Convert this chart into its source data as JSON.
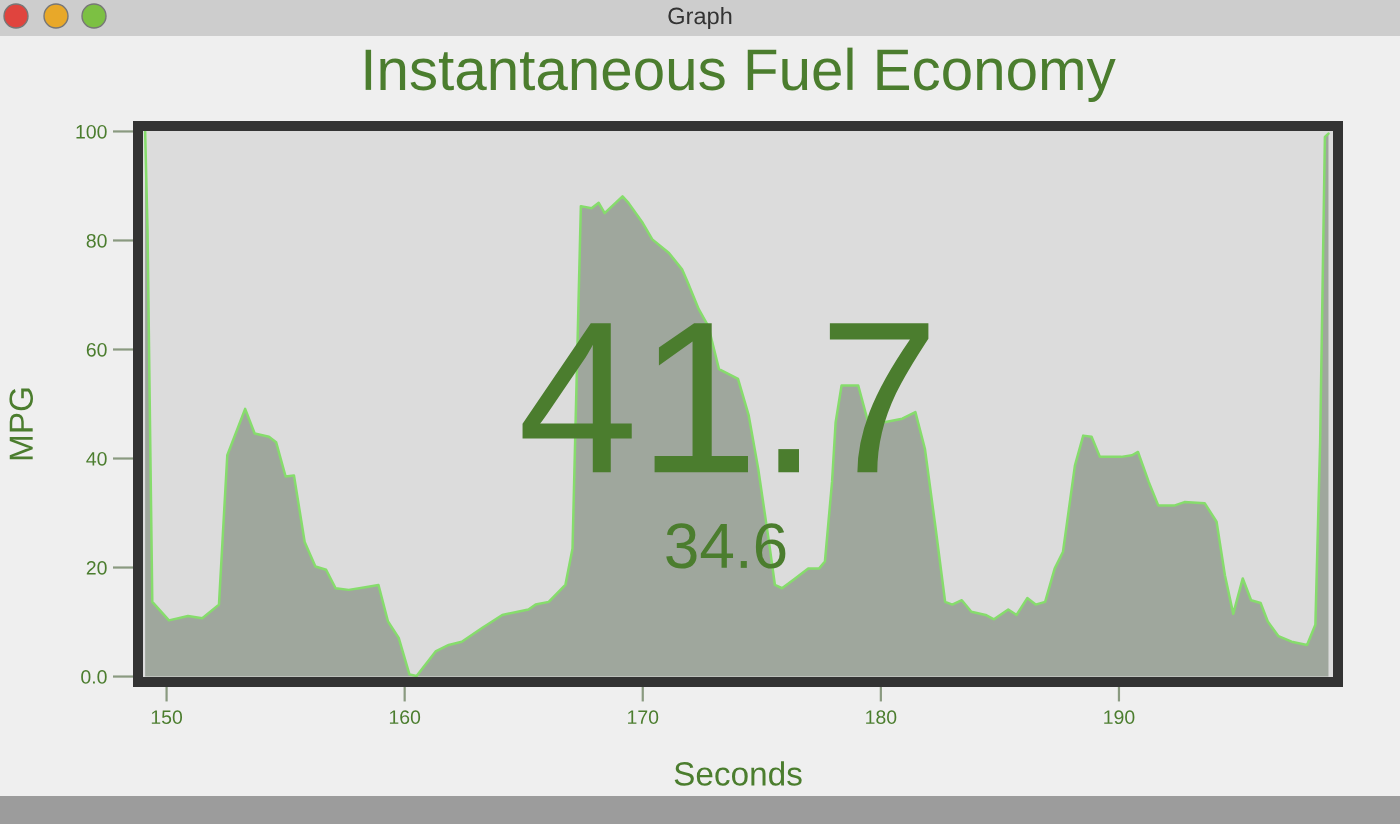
{
  "chart_data": {
    "type": "area",
    "title": "Instantaneous Fuel Economy",
    "xlabel": "Seconds",
    "ylabel": "MPG",
    "annotations": [
      "Graph",
      "41.7",
      "34.6"
    ],
    "x": [
      149.1,
      149.2,
      149.4,
      150.1,
      150.9,
      151.5,
      152.2,
      152.55,
      153.3,
      153.7,
      154.3,
      154.6,
      155.0,
      155.35,
      155.8,
      156.25,
      156.7,
      157.1,
      157.65,
      158.35,
      158.9,
      159.3,
      159.75,
      160.2,
      160.5,
      161.3,
      161.85,
      162.4,
      163.25,
      164.1,
      165.2,
      165.5,
      166.05,
      166.75,
      167.05,
      167.4,
      167.85,
      168.15,
      168.4,
      169.15,
      169.4,
      170.0,
      170.4,
      171.1,
      171.65,
      171.9,
      172.35,
      172.75,
      173.2,
      174.0,
      174.45,
      174.85,
      175.3,
      175.55,
      175.85,
      176.4,
      176.95,
      177.4,
      177.65,
      177.95,
      178.1,
      178.35,
      179.05,
      179.5,
      180.9,
      181.45,
      181.85,
      182.3,
      182.7,
      183.0,
      183.4,
      183.8,
      184.4,
      184.75,
      185.35,
      185.7,
      186.15,
      186.5,
      186.9,
      187.3,
      187.65,
      188.15,
      188.5,
      188.85,
      189.2,
      190.1,
      190.55,
      190.8,
      191.25,
      191.65,
      192.35,
      192.75,
      193.6,
      194.1,
      194.45,
      194.8,
      195.2,
      195.55,
      195.95,
      196.25,
      196.7,
      197.25,
      197.9,
      198.25,
      198.45,
      198.65,
      198.8
    ],
    "series": [
      {
        "color": "#86dc6c",
        "values": [
          100,
          82,
          13.7,
          10.3,
          11.1,
          10.7,
          13.2,
          40.6,
          49.1,
          44.6,
          44.0,
          43.0,
          36.7,
          36.9,
          24.7,
          20.2,
          19.6,
          16.2,
          15.9,
          16.4,
          16.8,
          10.1,
          7.1,
          0.4,
          0.1,
          4.6,
          5.8,
          6.4,
          8.9,
          11.3,
          12.3,
          13.2,
          13.7,
          16.8,
          23.5,
          86.3,
          85.9,
          86.9,
          85.0,
          88.1,
          86.9,
          83.2,
          80.2,
          77.7,
          74.7,
          72.2,
          67.4,
          64.3,
          56.4,
          54.6,
          47.9,
          38.1,
          24.7,
          16.8,
          16.2,
          18.0,
          19.8,
          19.8,
          21.1,
          35.7,
          46.6,
          53.4,
          53.4,
          46.1,
          47.3,
          48.5,
          41.8,
          27.2,
          13.7,
          13.2,
          14.0,
          11.9,
          11.3,
          10.5,
          12.3,
          11.3,
          14.4,
          13.2,
          13.7,
          19.8,
          22.9,
          38.7,
          44.2,
          44.0,
          40.3,
          40.3,
          40.6,
          41.2,
          35.7,
          31.4,
          31.4,
          32.0,
          31.8,
          28.4,
          18.6,
          11.5,
          18.0,
          14.0,
          13.5,
          10.1,
          7.4,
          6.4,
          5.8,
          9.5,
          43,
          99,
          99.6
        ]
      }
    ],
    "xlim": [
      148.8,
      199.2
    ],
    "ylim": [
      -1,
      101
    ],
    "xticks": [
      150,
      160,
      170,
      180,
      190
    ],
    "yticks": [
      {
        "value": 0,
        "label": "0.0"
      },
      20,
      40,
      60,
      80,
      100
    ]
  }
}
